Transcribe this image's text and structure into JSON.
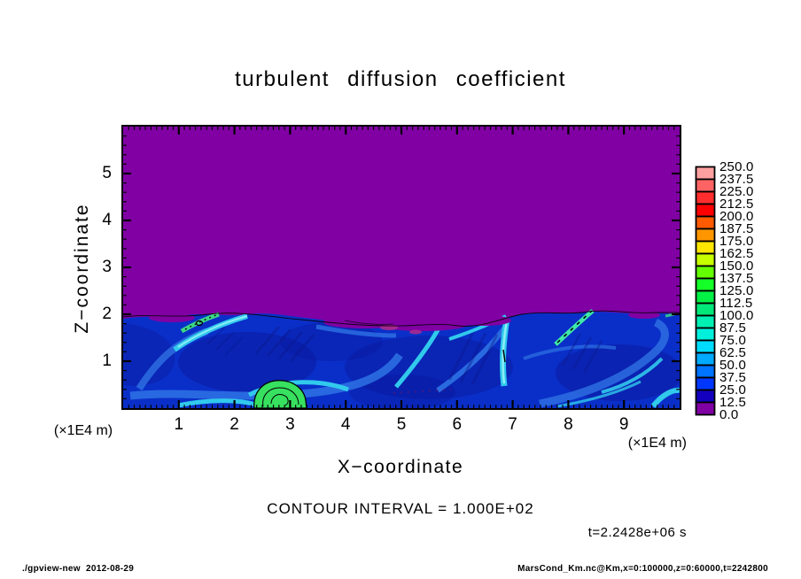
{
  "title": "turbulent diffusion coefficient",
  "axes": {
    "x_label": "X−coordinate",
    "y_label": "Z−coordinate",
    "x_unit_left": "(×1E4 m)",
    "x_unit_right": "(×1E4 m)",
    "x_ticks": [
      "1",
      "2",
      "3",
      "4",
      "5",
      "6",
      "7",
      "8",
      "9"
    ],
    "y_ticks": [
      "1",
      "2",
      "3",
      "4",
      "5"
    ]
  },
  "annotations": {
    "contour_interval": "CONTOUR INTERVAL = 1.000E+02",
    "time": "t=2.2428e+06 s"
  },
  "footer": {
    "left": "./gpview-new  2012-08-29",
    "right": "MarsCond_Km.nc@Km,x=0:100000,z=0:60000,t=2242800"
  },
  "colorbar": {
    "tick_labels": [
      "250.0",
      "237.5",
      "225.0",
      "212.5",
      "200.0",
      "187.5",
      "175.0",
      "162.5",
      "150.0",
      "137.5",
      "125.0",
      "112.5",
      "100.0",
      "87.5",
      "75.0",
      "62.5",
      "50.0",
      "37.5",
      "25.0",
      "12.5",
      "0.0"
    ],
    "colors_top_to_bottom": [
      "#FFA0A0",
      "#FF6464",
      "#FF2D2D",
      "#FF0000",
      "#FF5A00",
      "#FF9600",
      "#FFE600",
      "#C8FF00",
      "#64FF00",
      "#14FF28",
      "#00F046",
      "#00E878",
      "#00F0B4",
      "#00F0DC",
      "#00DCFF",
      "#00AAFF",
      "#0073FF",
      "#0037FF",
      "#1200BE",
      "#8000A4"
    ]
  },
  "chart_data": {
    "type": "heatmap",
    "title": "turbulent diffusion coefficient",
    "xlabel": "X-coordinate (x1E4 m)",
    "ylabel": "Z-coordinate (x1E4 m)",
    "xlim": [
      0,
      10
    ],
    "ylim": [
      0,
      6
    ],
    "x_tick_values": [
      1,
      2,
      3,
      4,
      5,
      6,
      7,
      8,
      9
    ],
    "y_tick_values": [
      1,
      2,
      3,
      4,
      5
    ],
    "color_levels": [
      0,
      12.5,
      25,
      37.5,
      50,
      62.5,
      75,
      87.5,
      100,
      112.5,
      125,
      137.5,
      150,
      162.5,
      175,
      187.5,
      200,
      212.5,
      225,
      237.5,
      250
    ],
    "contour_interval": 100.0,
    "time_seconds": 2242800,
    "legend_position": "right",
    "field_summary": "Value ~0 (purple) everywhere above z≈2e4 m; below z≈2e4 m a turbulent boundary layer with eddies of ~12.5-100 (blue to cyan), cyan filaments, and local maxima >100 (green, outlined by black contours at interval 100) near x≈3e4 m at the surface and near x≈2e4 m and x≈6.5e4 m at the z≈2e4 m interface."
  }
}
